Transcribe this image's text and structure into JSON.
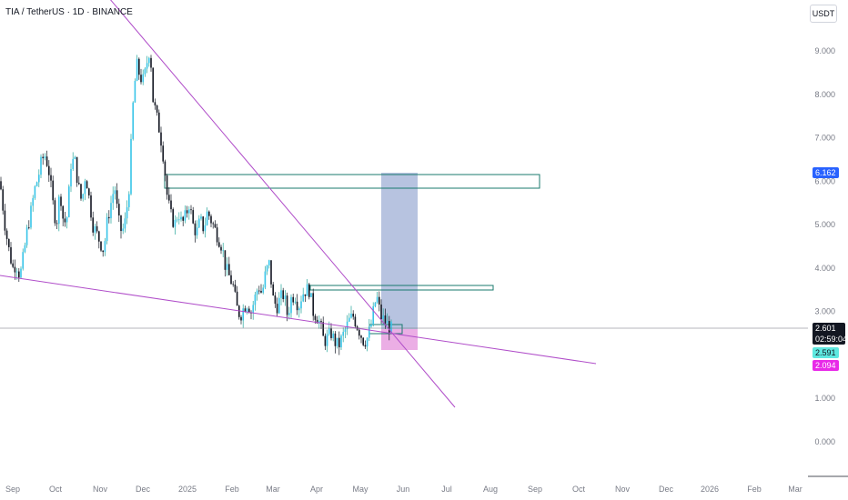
{
  "symbol": {
    "title": "TIA / TetherUS · 1D · BINANCE"
  },
  "currency_button": {
    "label": "USDT"
  },
  "price_tags": {
    "last_price": "2.601",
    "countdown": "02:59:04",
    "target": "6.162",
    "cyan": "2.591",
    "stop": "2.094"
  },
  "colors": {
    "up": "#26a69a",
    "down": "#131722",
    "upfill": "#38c4e8",
    "trendline": "#b04dc9",
    "box_border": "#1a7a6e",
    "target_zone": "#aab9db",
    "stop_zone": "#e8a0e0",
    "axis_text": "#787b86",
    "grid": "#f0f3fa"
  },
  "chart_data": {
    "type": "candlestick",
    "x_ticks": [
      "Sep",
      "Oct",
      "Nov",
      "Dec",
      "2025",
      "Feb",
      "Mar",
      "Apr",
      "May",
      "Jun",
      "Jul",
      "Aug",
      "Sep",
      "Oct",
      "Nov",
      "Dec",
      "2026",
      "Feb",
      "Mar"
    ],
    "y_ticks": [
      "9.000",
      "8.000",
      "7.000",
      "6.000",
      "5.000",
      "4.000",
      "3.000",
      "2.000",
      "1.000",
      "0.000"
    ],
    "ylim": [
      -0.65,
      10.2
    ],
    "price_trend_points": [
      [
        0,
        6.0
      ],
      [
        6,
        4.9
      ],
      [
        10,
        4.4
      ],
      [
        14,
        4.0
      ],
      [
        18,
        4.1
      ],
      [
        22,
        3.8
      ],
      [
        26,
        4.3
      ],
      [
        30,
        4.9
      ],
      [
        34,
        5.3
      ],
      [
        38,
        5.8
      ],
      [
        42,
        6.1
      ],
      [
        46,
        6.5
      ],
      [
        50,
        6.6
      ],
      [
        54,
        6.2
      ],
      [
        58,
        5.5
      ],
      [
        62,
        5.0
      ],
      [
        66,
        5.8
      ],
      [
        70,
        5.0
      ],
      [
        74,
        5.2
      ],
      [
        78,
        6.4
      ],
      [
        82,
        6.5
      ],
      [
        86,
        5.9
      ],
      [
        90,
        5.5
      ],
      [
        94,
        6.2
      ],
      [
        98,
        5.6
      ],
      [
        102,
        5.0
      ],
      [
        106,
        4.8
      ],
      [
        110,
        4.6
      ],
      [
        114,
        4.4
      ],
      [
        118,
        5.1
      ],
      [
        122,
        5.5
      ],
      [
        126,
        5.9
      ],
      [
        130,
        5.1
      ],
      [
        134,
        4.8
      ],
      [
        138,
        5.1
      ],
      [
        142,
        5.9
      ],
      [
        146,
        7.7
      ],
      [
        148,
        8.2
      ],
      [
        150,
        8.7
      ],
      [
        154,
        8.4
      ],
      [
        158,
        8.3
      ],
      [
        162,
        8.8
      ],
      [
        165,
        9.1
      ],
      [
        168,
        7.9
      ],
      [
        172,
        7.5
      ],
      [
        176,
        7.1
      ],
      [
        180,
        6.5
      ],
      [
        184,
        5.6
      ],
      [
        188,
        5.2
      ],
      [
        192,
        5.0
      ],
      [
        196,
        5.3
      ],
      [
        200,
        5.0
      ],
      [
        204,
        5.2
      ],
      [
        208,
        5.5
      ],
      [
        212,
        5.0
      ],
      [
        216,
        4.8
      ],
      [
        220,
        5.1
      ],
      [
        224,
        4.9
      ],
      [
        228,
        5.3
      ],
      [
        232,
        5.1
      ],
      [
        236,
        4.9
      ],
      [
        240,
        4.7
      ],
      [
        244,
        4.5
      ],
      [
        248,
        4.0
      ],
      [
        252,
        3.8
      ],
      [
        256,
        3.6
      ],
      [
        260,
        3.1
      ],
      [
        264,
        2.9
      ],
      [
        268,
        3.1
      ],
      [
        272,
        3.2
      ],
      [
        276,
        3.0
      ],
      [
        280,
        3.3
      ],
      [
        284,
        3.6
      ],
      [
        288,
        3.4
      ],
      [
        292,
        3.9
      ],
      [
        296,
        4.1
      ],
      [
        300,
        3.3
      ],
      [
        304,
        3.1
      ],
      [
        308,
        3.3
      ],
      [
        312,
        3.4
      ],
      [
        316,
        2.9
      ],
      [
        320,
        3.3
      ],
      [
        324,
        3.4
      ],
      [
        328,
        3.1
      ],
      [
        332,
        3.4
      ],
      [
        336,
        3.5
      ],
      [
        340,
        3.5
      ],
      [
        344,
        3.0
      ],
      [
        348,
        2.9
      ],
      [
        352,
        2.7
      ],
      [
        356,
        2.3
      ],
      [
        360,
        2.4
      ],
      [
        364,
        2.5
      ],
      [
        368,
        2.3
      ],
      [
        372,
        2.2
      ],
      [
        376,
        2.4
      ],
      [
        380,
        2.6
      ],
      [
        384,
        2.8
      ],
      [
        388,
        2.9
      ],
      [
        392,
        2.7
      ],
      [
        396,
        2.5
      ],
      [
        400,
        2.3
      ],
      [
        404,
        2.4
      ],
      [
        408,
        2.7
      ],
      [
        412,
        3.2
      ],
      [
        415,
        3.3
      ],
      [
        418,
        2.9
      ],
      [
        422,
        2.8
      ],
      [
        426,
        2.7
      ],
      [
        430,
        2.6
      ]
    ],
    "annotations": {
      "trendline_down": [
        [
          120,
          -2
        ],
        [
          500,
          448
        ]
      ],
      "trendline_support": [
        [
          0,
          303
        ],
        [
          655,
          400
        ]
      ],
      "resistance_box_upper": [
        181,
        192,
        593,
        207
      ],
      "resistance_box_lower": [
        341,
        314,
        542,
        319
      ],
      "small_box": [
        406,
        357,
        442,
        367
      ],
      "target_zone_rect": [
        419,
        190,
        459,
        362
      ],
      "stop_zone_rect": [
        419,
        362,
        459,
        385
      ],
      "current_price_line_y": 361
    }
  }
}
